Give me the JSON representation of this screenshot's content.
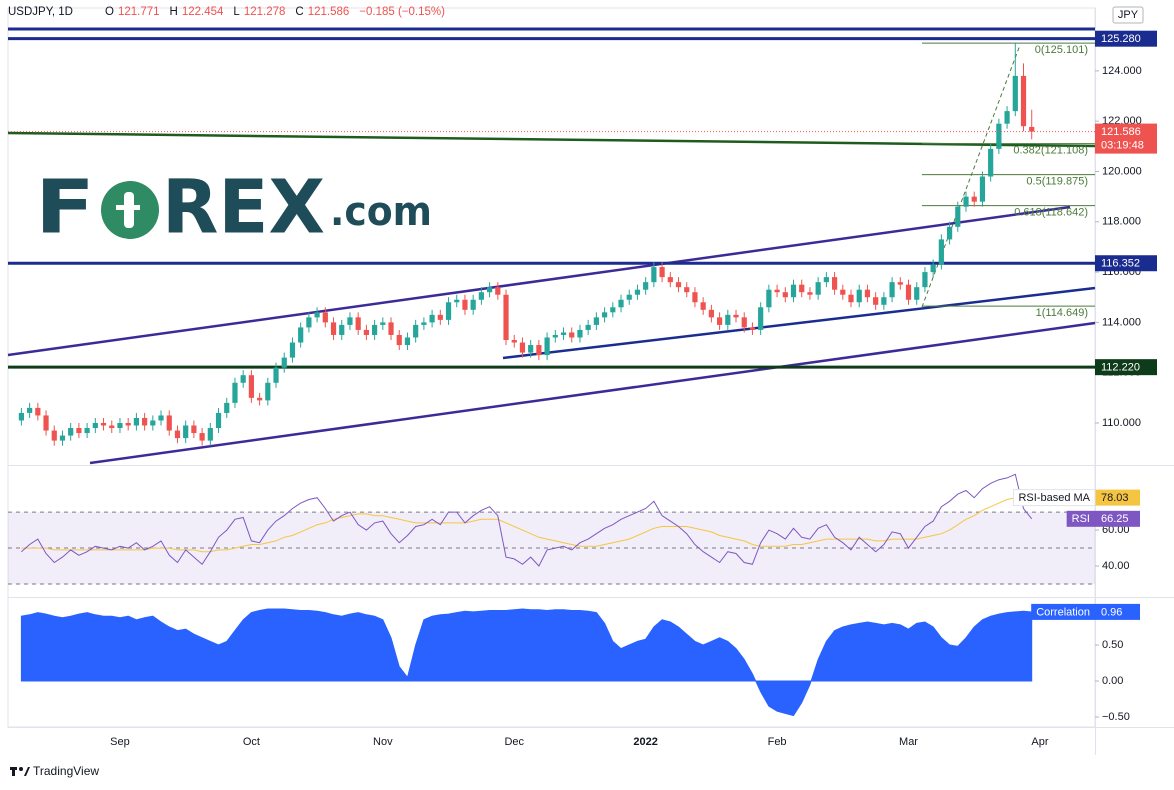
{
  "chart_data": [
    {
      "type": "candlestick",
      "title": "USDJPY, 1D",
      "currency": "JPY",
      "ohlc_prefixes": [
        "O",
        "H",
        "L",
        "C"
      ],
      "change_label": "−0.185 (−0.15%)",
      "countdown": "03:19:48",
      "categories": [
        null,
        null,
        null,
        null,
        null,
        null,
        null,
        null,
        null,
        null,
        null,
        null,
        "Sep",
        null,
        null,
        null,
        null,
        null,
        null,
        null,
        null,
        null,
        null,
        null,
        null,
        null,
        null,
        null,
        "Oct",
        null,
        null,
        null,
        null,
        null,
        null,
        null,
        null,
        null,
        null,
        null,
        null,
        null,
        null,
        null,
        "Nov",
        null,
        null,
        null,
        null,
        null,
        null,
        null,
        null,
        null,
        null,
        null,
        null,
        null,
        null,
        null,
        "Dec",
        null,
        null,
        null,
        null,
        null,
        null,
        null,
        null,
        null,
        null,
        null,
        null,
        null,
        null,
        null,
        "2022",
        null,
        null,
        null,
        null,
        null,
        null,
        null,
        null,
        null,
        null,
        null,
        null,
        null,
        null,
        null,
        "Feb",
        null,
        null,
        null,
        null,
        null,
        null,
        null,
        null,
        null,
        null,
        null,
        null,
        null,
        null,
        null,
        "Mar",
        null,
        null,
        null,
        null,
        null,
        null,
        null,
        null,
        null,
        null,
        null,
        null,
        null,
        null,
        null,
        "Apr",
        null,
        null,
        null,
        null,
        null,
        null
      ],
      "open": [
        110.1,
        110.4,
        110.6,
        110.3,
        109.7,
        109.3,
        109.5,
        109.8,
        109.6,
        109.8,
        110.0,
        109.9,
        109.8,
        110.0,
        109.9,
        110.2,
        109.9,
        110.1,
        110.3,
        109.7,
        109.4,
        109.9,
        109.6,
        109.3,
        109.8,
        110.4,
        110.8,
        111.6,
        111.9,
        111.0,
        110.9,
        111.6,
        112.2,
        112.6,
        113.2,
        113.8,
        114.2,
        114.4,
        114.0,
        113.5,
        113.9,
        114.2,
        113.7,
        113.5,
        113.9,
        114.0,
        113.5,
        113.1,
        113.4,
        113.9,
        114.0,
        114.3,
        114.1,
        114.8,
        114.9,
        114.5,
        114.9,
        115.2,
        115.4,
        115.1,
        113.3,
        113.2,
        112.8,
        113.1,
        112.7,
        113.4,
        113.5,
        113.6,
        113.4,
        113.7,
        113.9,
        114.2,
        114.4,
        114.6,
        114.9,
        115.1,
        115.3,
        115.6,
        116.2,
        115.8,
        115.6,
        115.4,
        115.2,
        114.8,
        114.5,
        114.2,
        113.9,
        114.3,
        114.2,
        113.8,
        113.7,
        114.6,
        115.3,
        115.2,
        115.0,
        115.5,
        115.2,
        115.1,
        115.6,
        115.8,
        115.3,
        115.1,
        114.8,
        115.3,
        115.0,
        114.7,
        115.0,
        115.6,
        115.5,
        114.9,
        115.4,
        116.0,
        116.3,
        117.3,
        117.8,
        118.6,
        119.0,
        118.8,
        119.8,
        120.9,
        121.9,
        122.4,
        123.8,
        121.771,
        null,
        null,
        null,
        null,
        null,
        null,
        null
      ],
      "high": [
        110.6,
        110.8,
        110.8,
        110.5,
        109.9,
        109.7,
        110.0,
        110.0,
        110.0,
        110.2,
        110.2,
        110.1,
        110.2,
        110.2,
        110.4,
        110.4,
        110.3,
        110.5,
        110.5,
        109.9,
        110.1,
        110.1,
        109.8,
        110.0,
        110.6,
        111.0,
        111.8,
        112.1,
        112.1,
        111.2,
        111.8,
        112.4,
        112.8,
        113.4,
        114.0,
        114.4,
        114.6,
        114.6,
        114.2,
        114.1,
        114.4,
        114.4,
        113.9,
        114.1,
        114.2,
        114.2,
        113.7,
        113.6,
        114.1,
        114.2,
        114.5,
        114.5,
        115.0,
        115.1,
        115.1,
        115.1,
        115.4,
        115.6,
        115.6,
        115.3,
        113.5,
        113.4,
        113.3,
        113.3,
        113.6,
        113.7,
        113.8,
        113.8,
        113.9,
        114.1,
        114.4,
        114.6,
        114.8,
        115.1,
        115.3,
        115.5,
        115.8,
        116.4,
        116.4,
        116.0,
        115.8,
        115.6,
        115.4,
        115.0,
        114.7,
        114.4,
        114.5,
        114.5,
        114.4,
        114.0,
        114.8,
        115.5,
        115.5,
        115.4,
        115.7,
        115.7,
        115.4,
        115.8,
        116.0,
        116.0,
        115.5,
        115.3,
        115.5,
        115.5,
        115.2,
        115.2,
        115.8,
        115.8,
        115.7,
        115.6,
        116.2,
        116.5,
        117.5,
        118.0,
        118.8,
        119.2,
        119.2,
        120.0,
        121.1,
        122.1,
        122.6,
        125.101,
        124.3,
        122.454,
        null,
        null,
        null,
        null,
        null,
        null,
        null
      ],
      "low": [
        109.9,
        110.2,
        110.1,
        109.5,
        109.1,
        109.1,
        109.3,
        109.4,
        109.4,
        109.6,
        109.7,
        109.6,
        109.6,
        109.7,
        109.7,
        109.7,
        109.7,
        109.9,
        109.5,
        109.2,
        109.2,
        109.4,
        109.1,
        109.1,
        109.6,
        110.2,
        110.6,
        111.4,
        110.8,
        110.7,
        110.7,
        111.4,
        112.0,
        112.4,
        113.0,
        113.6,
        114.0,
        113.8,
        113.3,
        113.3,
        113.7,
        113.5,
        113.3,
        113.3,
        113.7,
        113.3,
        112.9,
        112.9,
        113.2,
        113.7,
        113.8,
        113.9,
        113.9,
        114.6,
        114.3,
        114.3,
        114.7,
        115.0,
        114.9,
        113.1,
        113.0,
        112.6,
        112.6,
        112.5,
        112.5,
        113.2,
        113.3,
        113.2,
        113.2,
        113.5,
        113.7,
        114.0,
        114.2,
        114.4,
        114.7,
        114.9,
        115.1,
        115.4,
        115.6,
        115.4,
        115.2,
        115.0,
        114.6,
        114.3,
        114.0,
        113.7,
        113.7,
        114.0,
        113.6,
        113.5,
        113.5,
        114.4,
        115.0,
        114.8,
        114.8,
        115.0,
        114.9,
        114.9,
        115.4,
        115.1,
        114.9,
        114.6,
        114.6,
        114.8,
        114.5,
        114.5,
        114.8,
        115.3,
        114.7,
        114.7,
        115.2,
        115.8,
        116.1,
        117.1,
        117.6,
        118.4,
        118.6,
        118.6,
        119.6,
        120.7,
        121.7,
        122.2,
        121.6,
        121.278,
        null,
        null,
        null,
        null,
        null,
        null,
        null
      ],
      "close": [
        110.4,
        110.6,
        110.3,
        109.7,
        109.3,
        109.5,
        109.8,
        109.6,
        109.8,
        110.0,
        109.9,
        109.8,
        110.0,
        109.9,
        110.2,
        109.9,
        110.1,
        110.3,
        109.7,
        109.4,
        109.9,
        109.6,
        109.3,
        109.8,
        110.4,
        110.8,
        111.6,
        111.9,
        111.0,
        110.9,
        111.6,
        112.2,
        112.6,
        113.2,
        113.8,
        114.2,
        114.4,
        114.0,
        113.5,
        113.9,
        114.2,
        113.7,
        113.5,
        113.9,
        114.0,
        113.5,
        113.1,
        113.4,
        113.9,
        114.0,
        114.3,
        114.1,
        114.8,
        114.9,
        114.5,
        114.9,
        115.2,
        115.4,
        115.1,
        113.3,
        113.2,
        112.8,
        113.1,
        112.7,
        113.4,
        113.5,
        113.6,
        113.4,
        113.7,
        113.9,
        114.2,
        114.4,
        114.6,
        114.9,
        115.1,
        115.3,
        115.6,
        116.2,
        115.8,
        115.6,
        115.4,
        115.2,
        114.8,
        114.5,
        114.2,
        113.9,
        114.3,
        114.2,
        113.8,
        113.7,
        114.6,
        115.3,
        115.2,
        115.0,
        115.5,
        115.2,
        115.1,
        115.6,
        115.8,
        115.3,
        115.1,
        114.8,
        115.3,
        115.0,
        114.7,
        115.0,
        115.6,
        115.5,
        114.9,
        115.4,
        116.0,
        116.3,
        117.3,
        117.8,
        118.6,
        119.0,
        118.8,
        119.8,
        120.9,
        121.9,
        122.4,
        123.8,
        121.8,
        121.586,
        null,
        null,
        null,
        null,
        null,
        null,
        null
      ],
      "up_color": "#26a69a",
      "down_color": "#ef5350",
      "ylim": [
        108.33,
        126.5
      ],
      "yticks": [
        {
          "value": 110,
          "label": "110.000"
        },
        {
          "value": 112,
          "label": "112.000"
        },
        {
          "value": 114,
          "label": "114.000"
        },
        {
          "value": 116,
          "label": "116.000"
        },
        {
          "value": 118,
          "label": "118.000"
        },
        {
          "value": 120,
          "label": "120.000"
        },
        {
          "value": 122,
          "label": "122.000"
        },
        {
          "value": 124,
          "label": "124.000"
        }
      ],
      "price_lines": [
        {
          "value": 125.28,
          "label": "125.280",
          "color": "#1a2c8f"
        },
        {
          "value": 116.352,
          "label": "116.352",
          "color": "#1a2c8f"
        },
        {
          "value": 112.22,
          "label": "112.220",
          "color": "#0e3b1a"
        }
      ],
      "fib_levels": [
        {
          "value": 125.101,
          "label": "0(125.101)"
        },
        {
          "value": 121.108,
          "label": "0.382(121.108)"
        },
        {
          "value": 119.875,
          "label": "0.5(119.875)"
        },
        {
          "value": 118.642,
          "label": "0.618(118.642)"
        },
        {
          "value": 114.649,
          "label": "1(114.649)"
        }
      ],
      "fib_color": "#4c7a3a"
    },
    {
      "type": "line",
      "series": [
        {
          "name": "RSI",
          "color": "#7e57c2",
          "values": [
            48,
            52,
            55,
            47,
            42,
            45,
            49,
            46,
            48,
            51,
            50,
            49,
            51,
            50,
            53,
            49,
            51,
            54,
            46,
            42,
            49,
            45,
            41,
            48,
            56,
            60,
            66,
            67,
            54,
            53,
            60,
            65,
            68,
            72,
            75,
            77,
            78,
            72,
            65,
            68,
            70,
            63,
            60,
            64,
            65,
            58,
            53,
            57,
            62,
            63,
            66,
            63,
            70,
            70,
            64,
            68,
            71,
            73,
            68,
            45,
            44,
            41,
            45,
            40,
            49,
            50,
            51,
            49,
            53,
            55,
            58,
            61,
            63,
            66,
            68,
            70,
            72,
            76,
            68,
            65,
            62,
            58,
            52,
            48,
            45,
            42,
            48,
            47,
            42,
            41,
            53,
            60,
            58,
            55,
            61,
            56,
            55,
            61,
            63,
            56,
            53,
            49,
            56,
            52,
            48,
            52,
            59,
            58,
            50,
            56,
            62,
            65,
            73,
            76,
            80,
            82,
            78,
            83,
            86,
            88,
            89,
            91,
            72,
            66.25,
            null,
            null,
            null,
            null,
            null,
            null,
            null
          ]
        },
        {
          "name": "RSI-based MA",
          "color": "#f5c542",
          "values": [
            50,
            50,
            50,
            50,
            49,
            49,
            49,
            49,
            49,
            49,
            49,
            49,
            49,
            49,
            49,
            49,
            50,
            50,
            50,
            49,
            49,
            49,
            48,
            48,
            49,
            49,
            50,
            51,
            52,
            52,
            53,
            54,
            56,
            57,
            59,
            61,
            63,
            64,
            66,
            67,
            68,
            69,
            69,
            68,
            68,
            67,
            66,
            65,
            64,
            64,
            64,
            64,
            64,
            64,
            64,
            65,
            66,
            66,
            66,
            64,
            62,
            60,
            58,
            56,
            55,
            54,
            53,
            52,
            51,
            51,
            51,
            52,
            53,
            54,
            55,
            57,
            59,
            61,
            62,
            62,
            62,
            62,
            61,
            60,
            59,
            57,
            56,
            55,
            54,
            52,
            51,
            51,
            51,
            51,
            52,
            52,
            53,
            54,
            55,
            55,
            55,
            55,
            55,
            55,
            54,
            54,
            55,
            55,
            55,
            55,
            56,
            57,
            58,
            60,
            63,
            66,
            68,
            71,
            73,
            75,
            77,
            78,
            78,
            78.03,
            null,
            null,
            null,
            null,
            null,
            null,
            null
          ]
        }
      ],
      "ylim": [
        22.8,
        95.6
      ],
      "yticks": [
        {
          "value": 40,
          "label": "40.00"
        },
        {
          "value": 60,
          "label": "60.00"
        }
      ],
      "levels": [
        70,
        50,
        30
      ]
    },
    {
      "type": "area",
      "series": [
        {
          "name": "Correlation",
          "color": "#2962ff",
          "values": [
            0.9,
            0.92,
            0.95,
            0.93,
            0.9,
            0.88,
            0.9,
            0.93,
            0.95,
            0.92,
            0.9,
            0.9,
            0.88,
            0.9,
            0.85,
            0.88,
            0.9,
            0.82,
            0.75,
            0.7,
            0.72,
            0.65,
            0.6,
            0.55,
            0.5,
            0.55,
            0.7,
            0.85,
            0.95,
            0.98,
            1.0,
            1.0,
            1.0,
            0.99,
            0.98,
            0.98,
            0.97,
            0.95,
            0.92,
            0.9,
            0.93,
            0.95,
            0.92,
            0.9,
            0.85,
            0.6,
            0.2,
            0.05,
            0.5,
            0.85,
            0.9,
            0.92,
            0.93,
            0.95,
            0.97,
            0.96,
            0.97,
            0.98,
            0.98,
            0.98,
            0.99,
            1.0,
            0.99,
            0.99,
            0.98,
            0.99,
            0.99,
            0.98,
            0.98,
            0.97,
            0.95,
            0.8,
            0.55,
            0.45,
            0.5,
            0.55,
            0.58,
            0.75,
            0.85,
            0.82,
            0.75,
            0.65,
            0.55,
            0.5,
            0.55,
            0.6,
            0.55,
            0.45,
            0.3,
            0.1,
            -0.15,
            -0.35,
            -0.42,
            -0.45,
            -0.48,
            -0.3,
            -0.05,
            0.3,
            0.55,
            0.7,
            0.75,
            0.78,
            0.8,
            0.82,
            0.8,
            0.78,
            0.8,
            0.78,
            0.72,
            0.8,
            0.82,
            0.75,
            0.6,
            0.5,
            0.48,
            0.6,
            0.75,
            0.85,
            0.9,
            0.93,
            0.95,
            0.96,
            0.97,
            0.96,
            null,
            null,
            null,
            null,
            null,
            null,
            null
          ]
        }
      ],
      "ylim": [
        -0.639,
        1.153
      ],
      "yticks": [
        {
          "value": 0.5,
          "label": "0.50"
        },
        {
          "value": 0,
          "label": "0.00"
        },
        {
          "value": -0.5,
          "label": "−0.50"
        }
      ]
    }
  ],
  "branding": {
    "logo": [
      "F",
      "REX",
      ".com"
    ],
    "footer": "TradingView"
  }
}
